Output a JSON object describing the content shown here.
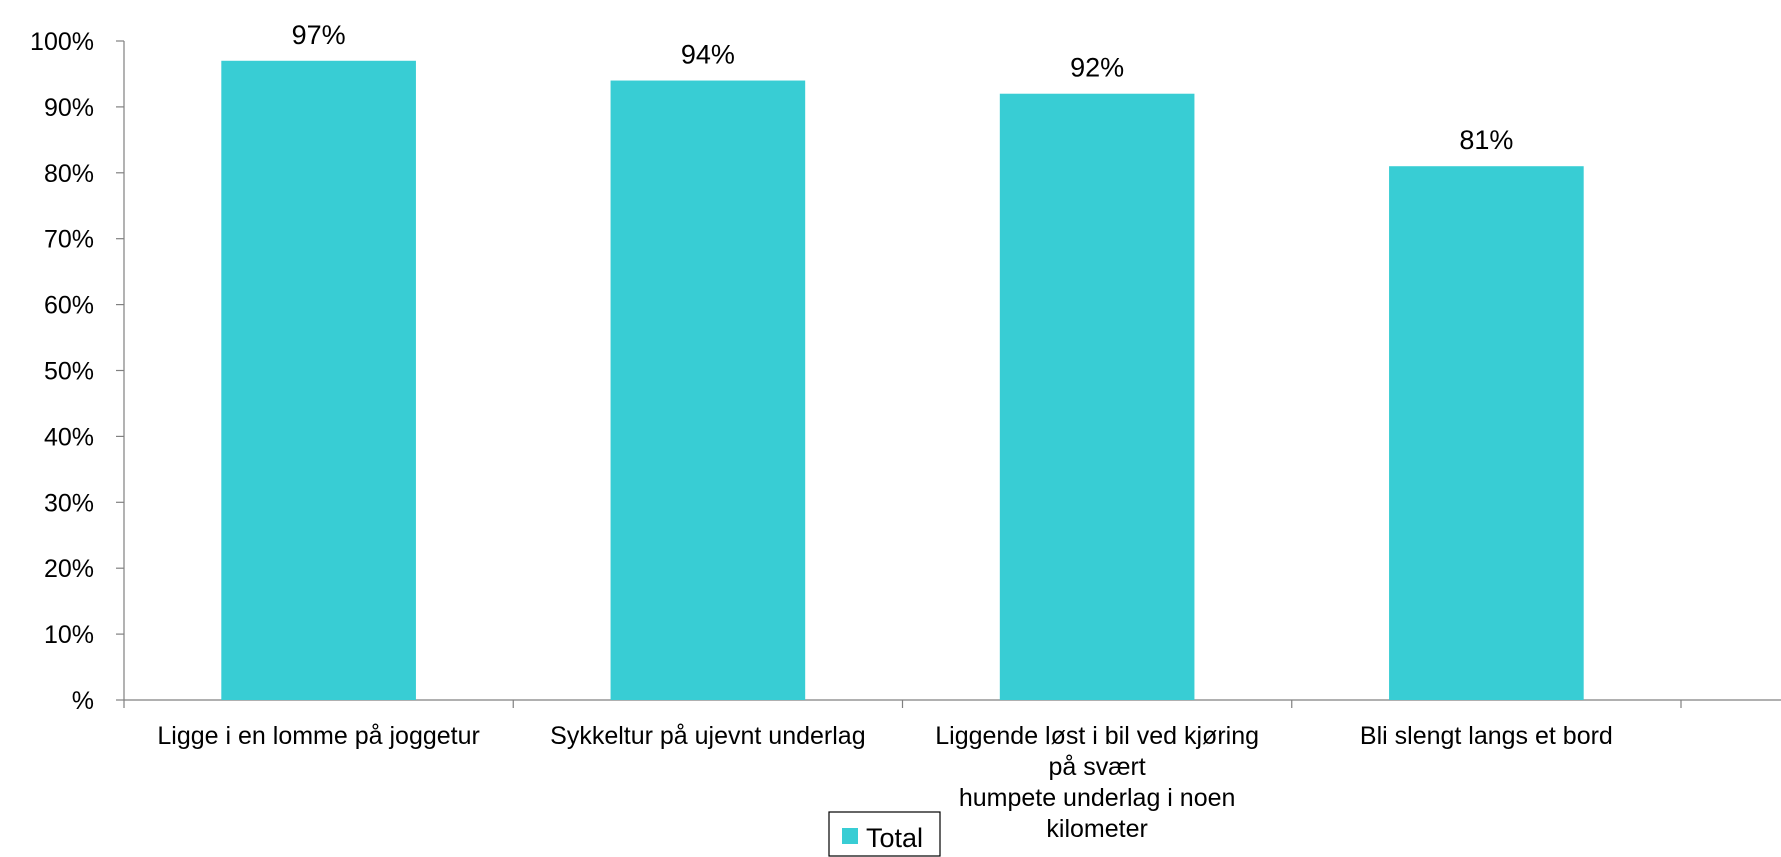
{
  "chart_data": {
    "type": "bar",
    "title": "",
    "xlabel": "",
    "ylabel": "",
    "categories": [
      "Ligge i en lomme på joggetur",
      "Sykkeltur på ujevnt underlag",
      "Liggende løst i bil ved kjøring på svært humpete underlag i noen kilometer",
      "Bli slengt langs et bord"
    ],
    "category_lines": [
      [
        "Ligge i en lomme på joggetur"
      ],
      [
        "Sykkeltur på ujevnt underlag"
      ],
      [
        "Liggende løst i bil ved kjøring",
        "på svært",
        "humpete underlag i noen",
        "kilometer"
      ],
      [
        "Bli slengt langs et bord"
      ]
    ],
    "series": [
      {
        "name": "Total",
        "values": [
          97,
          94,
          92,
          81
        ],
        "labels": [
          "97%",
          "94%",
          "92%",
          "81%"
        ],
        "color": "#38CDD4"
      }
    ],
    "ylim": [
      0,
      100
    ],
    "yticks": [
      0,
      10,
      20,
      30,
      40,
      50,
      60,
      70,
      80,
      90,
      100
    ],
    "ytick_labels": [
      "%",
      "10%",
      "20%",
      "30%",
      "40%",
      "50%",
      "60%",
      "70%",
      "80%",
      "90%",
      "100%"
    ],
    "grid": false,
    "legend": {
      "position": "bottom-center",
      "entries": [
        "Total"
      ]
    }
  }
}
